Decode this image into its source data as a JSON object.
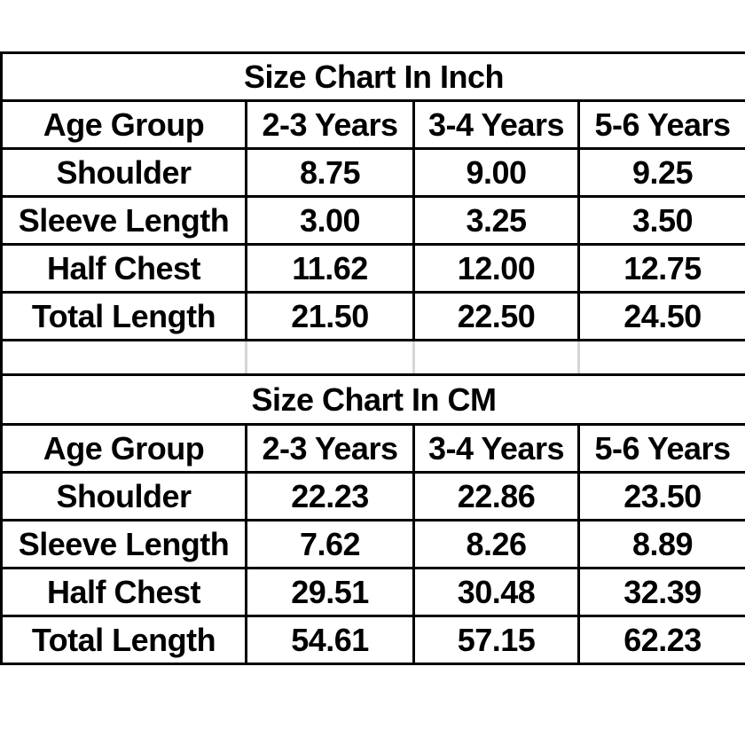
{
  "page": {
    "background_color": "#ffffff",
    "text_color": "#000000",
    "border_color": "#000000",
    "spacer_divider_color": "#d6d6d6"
  },
  "chart_data": [
    {
      "type": "table",
      "title": "Size Chart In Inch",
      "columns": [
        "Age Group",
        "2-3 Years",
        "3-4 Years",
        "5-6 Years"
      ],
      "rows": [
        [
          "Shoulder",
          "8.75",
          "9.00",
          "9.25"
        ],
        [
          "Sleeve Length",
          "3.00",
          "3.25",
          "3.50"
        ],
        [
          "Half Chest",
          "11.62",
          "12.00",
          "12.75"
        ],
        [
          "Total Length",
          "21.50",
          "22.50",
          "24.50"
        ]
      ]
    },
    {
      "type": "table",
      "title": "Size Chart In CM",
      "columns": [
        "Age Group",
        "2-3 Years",
        "3-4 Years",
        "5-6 Years"
      ],
      "rows": [
        [
          "Shoulder",
          "22.23",
          "22.86",
          "23.50"
        ],
        [
          "Sleeve Length",
          "7.62",
          "8.26",
          "8.89"
        ],
        [
          "Half Chest",
          "29.51",
          "30.48",
          "32.39"
        ],
        [
          "Total Length",
          "54.61",
          "57.15",
          "62.23"
        ]
      ]
    }
  ]
}
